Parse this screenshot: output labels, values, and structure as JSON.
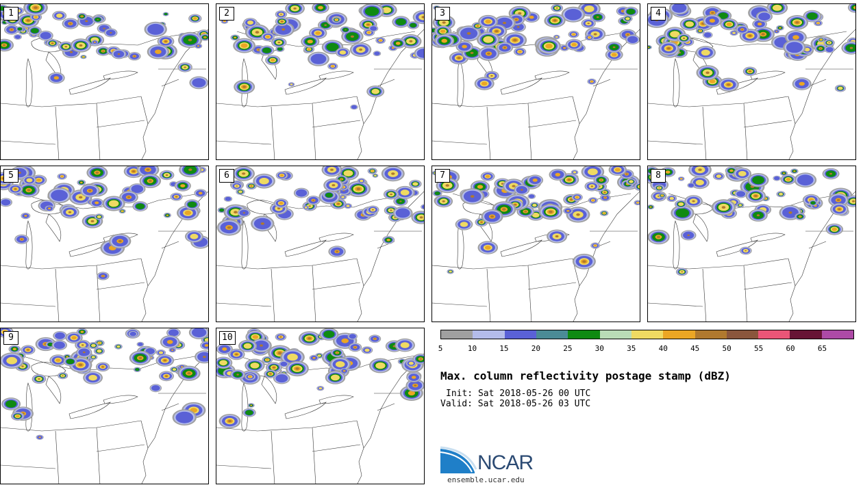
{
  "members": [
    {
      "label": "1"
    },
    {
      "label": "2"
    },
    {
      "label": "3"
    },
    {
      "label": "4"
    },
    {
      "label": "5"
    },
    {
      "label": "6"
    },
    {
      "label": "7"
    },
    {
      "label": "8"
    },
    {
      "label": "9"
    },
    {
      "label": "10"
    }
  ],
  "colorbar": {
    "colors": [
      "#a0a0a0",
      "#b4bcea",
      "#5a61d6",
      "#4b8b96",
      "#0f8a12",
      "#b9dcb7",
      "#efda62",
      "#eba624",
      "#b0792e",
      "#8a563c",
      "#eb5577",
      "#671435",
      "#ad4aa6"
    ],
    "ticks": [
      "5",
      "10",
      "15",
      "20",
      "25",
      "30",
      "35",
      "40",
      "45",
      "50",
      "55",
      "60",
      "65"
    ]
  },
  "title": "Max. column reflectivity postage stamp (dBZ)",
  "init": "Init: Sat 2018-05-26 00 UTC",
  "valid": "Valid: Sat 2018-05-26 03 UTC",
  "logo": {
    "name": "NCAR",
    "url": "ensemble.ucar.edu"
  }
}
